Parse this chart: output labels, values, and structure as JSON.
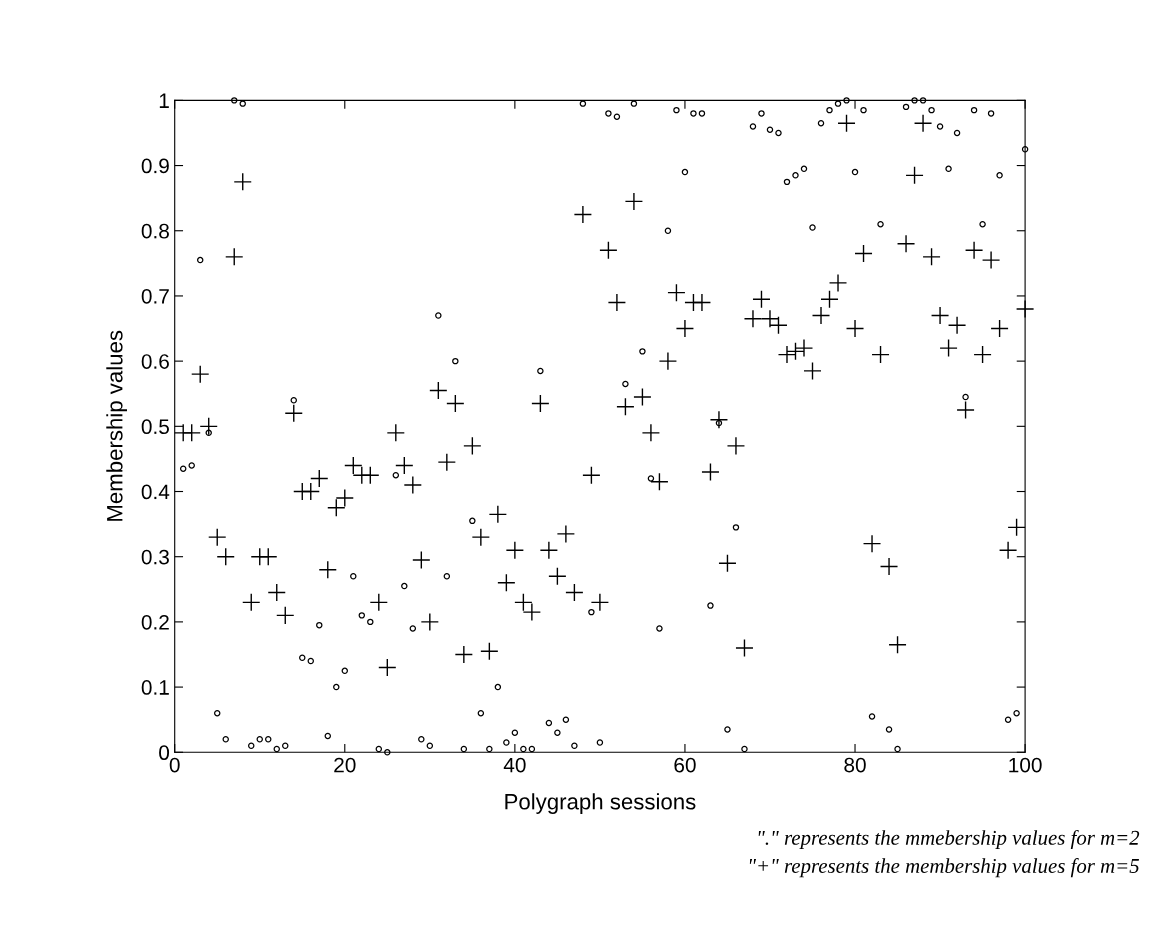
{
  "chart_data": {
    "type": "scatter",
    "xlabel": "Polygraph sessions",
    "ylabel": "Membership values",
    "x": [
      1,
      2,
      3,
      4,
      5,
      6,
      7,
      8,
      9,
      10,
      11,
      12,
      13,
      14,
      15,
      16,
      17,
      18,
      19,
      20,
      21,
      22,
      23,
      24,
      25,
      26,
      27,
      28,
      29,
      30,
      31,
      32,
      33,
      34,
      35,
      36,
      37,
      38,
      39,
      40,
      41,
      42,
      43,
      44,
      45,
      46,
      47,
      48,
      49,
      50,
      51,
      52,
      53,
      54,
      55,
      56,
      57,
      58,
      59,
      60,
      61,
      62,
      63,
      64,
      65,
      66,
      67,
      68,
      69,
      70,
      71,
      72,
      73,
      74,
      75,
      76,
      77,
      78,
      79,
      80,
      81,
      82,
      83,
      84,
      85,
      86,
      87,
      88,
      89,
      90,
      91,
      92,
      93,
      94,
      95,
      96,
      97,
      98,
      99,
      100
    ],
    "series": [
      {
        "color": "#000000",
        "marker": "circle",
        "values": [
          0.435,
          0.44,
          0.755,
          0.49,
          0.06,
          0.02,
          1.0,
          0.995,
          0.01,
          0.02,
          0.02,
          0.005,
          0.01,
          0.54,
          0.145,
          0.14,
          0.195,
          0.025,
          0.1,
          0.125,
          0.27,
          0.21,
          0.2,
          0.005,
          0.0,
          0.425,
          0.255,
          0.19,
          0.02,
          0.01,
          0.67,
          0.27,
          0.6,
          0.005,
          0.355,
          0.06,
          0.005,
          0.1,
          0.015,
          0.03,
          0.005,
          0.005,
          0.585,
          0.045,
          0.03,
          0.05,
          0.01,
          0.995,
          0.215,
          0.015,
          0.98,
          0.975,
          0.565,
          0.995,
          0.615,
          0.42,
          0.19,
          0.8,
          0.985,
          0.89,
          0.98,
          0.98,
          0.225,
          0.505,
          0.035,
          0.345,
          0.005,
          0.96,
          0.98,
          0.955,
          0.95,
          0.875,
          0.885,
          0.895,
          0.805,
          0.965,
          0.985,
          0.995,
          1.0,
          0.89,
          0.985,
          0.055,
          0.81,
          0.035,
          0.005,
          0.99,
          1.0,
          1.0,
          0.985,
          0.96,
          0.895,
          0.95,
          0.545,
          0.985,
          0.81,
          0.98,
          0.885,
          0.05,
          0.06,
          0.925
        ]
      },
      {
        "color": "#000000",
        "marker": "cross",
        "values": [
          0.49,
          0.49,
          0.58,
          0.5,
          0.33,
          0.3,
          0.76,
          0.875,
          0.23,
          0.3,
          0.3,
          0.245,
          0.21,
          0.52,
          0.4,
          0.4,
          0.42,
          0.28,
          0.375,
          0.39,
          0.44,
          0.425,
          0.425,
          0.23,
          0.13,
          0.49,
          0.44,
          0.41,
          0.295,
          0.2,
          0.555,
          0.445,
          0.535,
          0.15,
          0.47,
          0.33,
          0.155,
          0.365,
          0.26,
          0.31,
          0.23,
          0.215,
          0.535,
          0.31,
          0.27,
          0.335,
          0.245,
          0.825,
          0.425,
          0.23,
          0.77,
          0.69,
          0.53,
          0.845,
          0.545,
          0.49,
          0.415,
          0.6,
          0.705,
          0.65,
          0.69,
          0.69,
          0.43,
          0.51,
          0.29,
          0.47,
          0.16,
          0.665,
          0.695,
          0.665,
          0.655,
          0.61,
          0.615,
          0.62,
          0.585,
          0.67,
          0.695,
          0.72,
          0.965,
          0.65,
          0.765,
          0.32,
          0.61,
          0.285,
          0.165,
          0.78,
          0.885,
          0.965,
          0.76,
          0.67,
          0.62,
          0.655,
          0.525,
          0.77,
          0.61,
          0.755,
          0.65,
          0.31,
          0.345,
          0.68
        ]
      }
    ],
    "xlim": [
      0,
      100
    ],
    "xticks": [
      0,
      20,
      40,
      60,
      80,
      100
    ],
    "ylim": [
      0,
      1
    ],
    "yticks": [
      0,
      0.1,
      0.2,
      0.3,
      0.4,
      0.5,
      0.6,
      0.7,
      0.8,
      0.9,
      1
    ],
    "grid": false,
    "legend": false,
    "annotations": [
      "\".\" represents the mmebership values for m=2",
      "\"+\" represents the membership values for m=5"
    ]
  }
}
